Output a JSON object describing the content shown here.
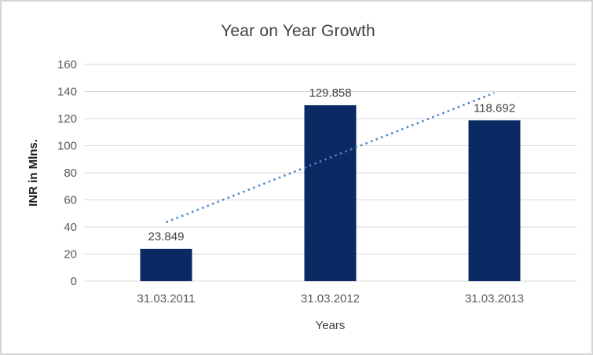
{
  "frame": {
    "background": "#ffffff",
    "border_color": "#d6d6d6"
  },
  "chart_data": {
    "type": "bar",
    "title": "Year on Year Growth",
    "xlabel": "Years",
    "ylabel": "INR in Mlns.",
    "categories": [
      "31.03.2011",
      "31.03.2012",
      "31.03.2013"
    ],
    "values": [
      23.849,
      129.858,
      118.692
    ],
    "data_labels": [
      "23.849",
      "129.858",
      "118.692"
    ],
    "ylim": [
      0,
      160
    ],
    "ytick_step": 20,
    "ytick_labels": [
      "0",
      "20",
      "40",
      "60",
      "80",
      "100",
      "120",
      "140",
      "160"
    ],
    "grid": "horizontal",
    "legend": "none",
    "colors": {
      "bar": "#0b2a63",
      "trendline": "#4a84c6",
      "gridline": "#d9d9d9",
      "title_text": "#404040",
      "tick_text": "#595959",
      "data_label_text": "#404040",
      "y_axis_title_text": "#1a1a1a"
    },
    "trendline": {
      "type": "linear",
      "style": "dotted",
      "start_value": 43.5,
      "end_value": 139
    }
  }
}
